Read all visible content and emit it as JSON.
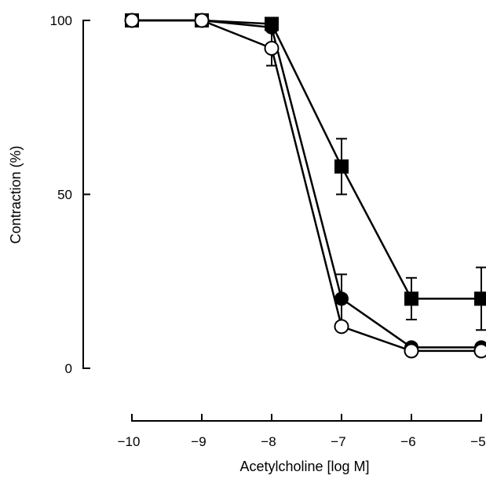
{
  "chart_data": {
    "type": "line",
    "title": "",
    "xlabel": "Acetylcholine [log ",
    "xlabel_unit": "M",
    "xlabel_close": "]",
    "ylabel": "Contraction (%)",
    "xlim": [
      -10,
      -5
    ],
    "ylim": [
      0,
      100
    ],
    "x_ticks": [
      -10,
      -9,
      -8,
      -7,
      -6,
      -5
    ],
    "x_tick_labels": [
      "−10",
      "−9",
      "−8",
      "−7",
      "−6",
      "−5"
    ],
    "y_ticks": [
      0,
      50,
      100
    ],
    "y_tick_labels": [
      "0",
      "50",
      "100"
    ],
    "grid": false,
    "legend": "none",
    "series": [
      {
        "marker": "filled-square",
        "color": "#000000",
        "x": [
          -10,
          -9,
          -8,
          -7,
          -6,
          -5
        ],
        "y": [
          100,
          100,
          99,
          58,
          20,
          20
        ],
        "err": [
          0,
          0,
          1,
          8,
          6,
          9
        ]
      },
      {
        "marker": "filled-circle",
        "color": "#000000",
        "x": [
          -10,
          -9,
          -8,
          -7,
          -6,
          -5
        ],
        "y": [
          100,
          100,
          98,
          20,
          6,
          6
        ],
        "err": [
          0,
          0,
          1,
          7,
          1,
          1
        ]
      },
      {
        "marker": "open-circle",
        "color": "#000000",
        "x": [
          -10,
          -9,
          -8,
          -7,
          -6,
          -5
        ],
        "y": [
          100,
          100,
          92,
          12,
          5,
          5
        ],
        "err": [
          0,
          0,
          5,
          1,
          1,
          1
        ]
      }
    ]
  }
}
